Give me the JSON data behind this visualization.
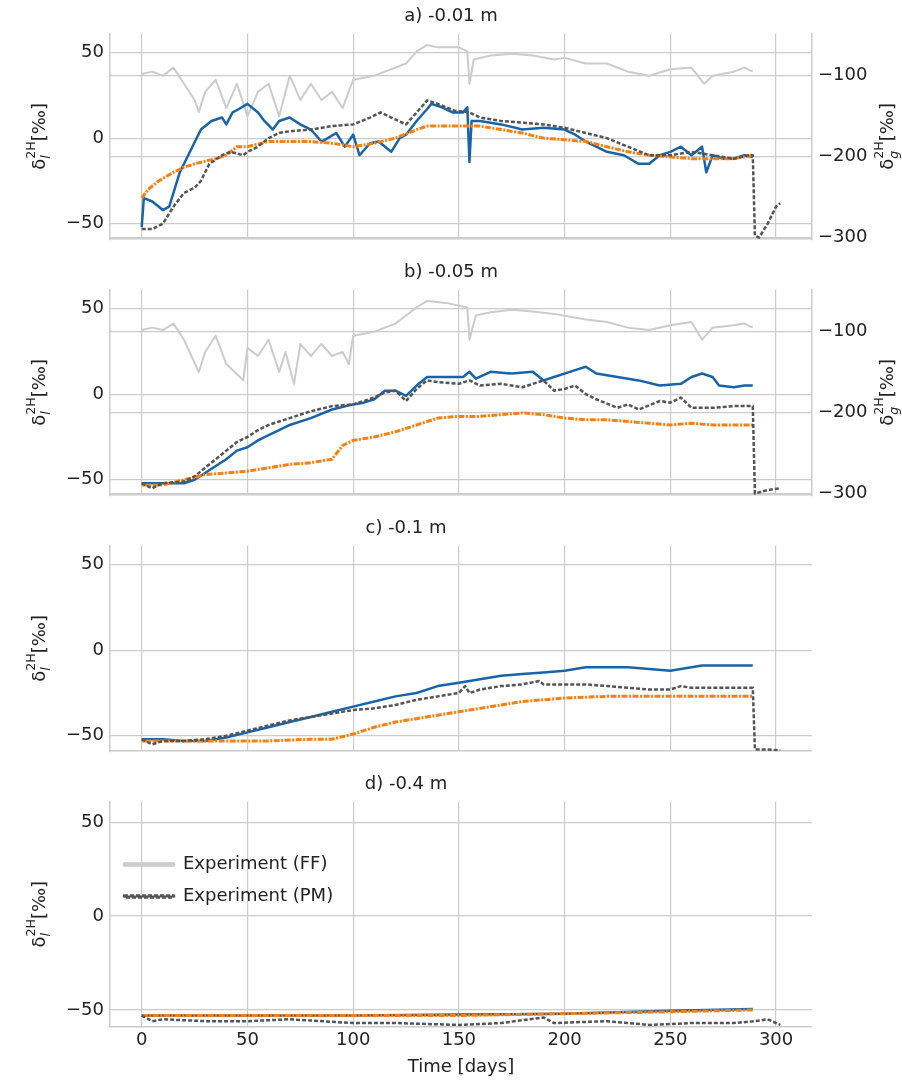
{
  "chart_data": [
    {
      "type": "line",
      "title": "a) -0.01 m",
      "ylabel": "δ$_{l}$$^{2H}$[‰]",
      "y2label": "δ$_{g}$$^{2H}$[‰]",
      "xlim": [
        -15,
        317
      ],
      "xticks": [
        0,
        50,
        100,
        150,
        200,
        250,
        300
      ],
      "ylim": [
        -59,
        61
      ],
      "yticks": [
        -50,
        0,
        50
      ],
      "y2lim": [
        -302,
        -48
      ],
      "y2ticks": [
        -300,
        -200,
        -100
      ],
      "grid": true,
      "tick_labels": "y",
      "marker": "none",
      "series": [
        {
          "color": "#1764ab",
          "line_style": "solid",
          "x": [
            0,
            1,
            5,
            10,
            13,
            18,
            22,
            28,
            33,
            38,
            40,
            43,
            46,
            50,
            55,
            58,
            62,
            65,
            70,
            75,
            80,
            85,
            88,
            92,
            96,
            100,
            103,
            108,
            112,
            118,
            122,
            125,
            130,
            135,
            137,
            142,
            147,
            152,
            154,
            155,
            156,
            160,
            170,
            180,
            190,
            200,
            205,
            210,
            215,
            220,
            228,
            235,
            240,
            245,
            250,
            255,
            260,
            265,
            267,
            270,
            275,
            280,
            285,
            289
          ],
          "values": [
            -52,
            -35,
            -37,
            -42,
            -40,
            -20,
            -10,
            5,
            10,
            12,
            8,
            15,
            17,
            20,
            15,
            10,
            5,
            10,
            12,
            8,
            5,
            -2,
            0,
            3,
            -5,
            2,
            -10,
            -3,
            -2,
            -8,
            0,
            2,
            10,
            17,
            20,
            18,
            15,
            15,
            18,
            -14,
            10,
            10,
            8,
            5,
            6,
            5,
            2,
            -2,
            -5,
            -8,
            -10,
            -15,
            -15,
            -10,
            -8,
            -5,
            -10,
            -5,
            -20,
            -10,
            -12,
            -12,
            -10,
            -11
          ]
        },
        {
          "color": "#ff7f0e",
          "line_style": "dashdot",
          "x": [
            0,
            3,
            8,
            15,
            20,
            25,
            35,
            40,
            45,
            50,
            60,
            70,
            80,
            90,
            100,
            110,
            120,
            130,
            135,
            140,
            150,
            160,
            170,
            180,
            190,
            200,
            210,
            220,
            230,
            240,
            250,
            260,
            270,
            280,
            289
          ],
          "values": [
            -35,
            -30,
            -25,
            -20,
            -17,
            -15,
            -12,
            -10,
            -5,
            -5,
            -2,
            -2,
            -2,
            -3,
            -5,
            -3,
            0,
            5,
            7,
            7,
            7,
            7,
            5,
            3,
            0,
            -1,
            -2,
            -5,
            -8,
            -10,
            -11,
            -12,
            -12,
            -12,
            -10
          ]
        },
        {
          "color": "#555555",
          "line_style": "dashed",
          "x": [
            0,
            5,
            10,
            15,
            20,
            25,
            28,
            32,
            38,
            42,
            48,
            50,
            55,
            60,
            65,
            70,
            80,
            90,
            100,
            108,
            113,
            118,
            125,
            130,
            135,
            140,
            148,
            155,
            160,
            170,
            180,
            190,
            200,
            210,
            220,
            230,
            240,
            250,
            260,
            270,
            280,
            287,
            289,
            290,
            292,
            296,
            300,
            302
          ],
          "values": [
            -53,
            -53,
            -50,
            -40,
            -32,
            -29,
            -25,
            -15,
            -10,
            -8,
            -10,
            -8,
            -5,
            0,
            3,
            4,
            5,
            7,
            8,
            12,
            15,
            12,
            8,
            15,
            22,
            20,
            16,
            15,
            12,
            10,
            9,
            8,
            6,
            3,
            0,
            -5,
            -10,
            -10,
            -8,
            -10,
            -12,
            -10,
            -10,
            -57,
            -58,
            -50,
            -40,
            -38
          ]
        },
        {
          "color": "#cccccc",
          "line_style": "solid",
          "axis": "y2",
          "x": [
            0,
            5,
            10,
            15,
            20,
            25,
            27,
            30,
            35,
            40,
            45,
            50,
            55,
            60,
            65,
            70,
            75,
            80,
            85,
            90,
            95,
            100,
            110,
            115,
            120,
            125,
            130,
            135,
            140,
            150,
            154,
            155,
            157,
            165,
            175,
            185,
            195,
            200,
            210,
            220,
            230,
            240,
            250,
            260,
            266,
            270,
            280,
            285,
            289
          ],
          "values": [
            -98,
            -95,
            -100,
            -90,
            -110,
            -130,
            -145,
            -120,
            -105,
            -140,
            -110,
            -150,
            -120,
            -110,
            -150,
            -100,
            -130,
            -110,
            -130,
            -120,
            -140,
            -105,
            -100,
            -95,
            -90,
            -85,
            -70,
            -62,
            -65,
            -65,
            -70,
            -110,
            -80,
            -75,
            -73,
            -75,
            -80,
            -78,
            -85,
            -85,
            -95,
            -100,
            -92,
            -90,
            -110,
            -100,
            -95,
            -90,
            -95
          ]
        }
      ]
    },
    {
      "type": "line",
      "title": "b) -0.05 m",
      "ylabel": "δ$_{l}$$^{2H}$[‰]",
      "y2label": "δ$_{g}$$^{2H}$[‰]",
      "xlim": [
        -15,
        317
      ],
      "xticks": [
        0,
        50,
        100,
        150,
        200,
        250,
        300
      ],
      "ylim": [
        -59,
        61
      ],
      "yticks": [
        -50,
        0,
        50
      ],
      "y2lim": [
        -302,
        -48
      ],
      "y2ticks": [
        -300,
        -200,
        -100
      ],
      "grid": true,
      "tick_labels": "y",
      "marker": "none",
      "series": [
        {
          "color": "#1764ab",
          "line_style": "solid",
          "x": [
            0,
            10,
            20,
            25,
            30,
            35,
            40,
            45,
            50,
            55,
            60,
            65,
            70,
            80,
            90,
            100,
            105,
            110,
            115,
            120,
            125,
            130,
            135,
            145,
            152,
            155,
            158,
            165,
            175,
            185,
            190,
            195,
            205,
            210,
            215,
            225,
            235,
            245,
            255,
            260,
            265,
            270,
            273,
            280,
            285,
            289
          ],
          "values": [
            -52,
            -52,
            -52,
            -50,
            -46,
            -42,
            -38,
            -33,
            -31,
            -27,
            -24,
            -21,
            -18,
            -14,
            -9,
            -6,
            -5,
            -3,
            2,
            2,
            -1,
            5,
            10,
            10,
            10,
            13,
            9,
            13,
            12,
            13,
            8,
            10,
            14,
            16,
            12,
            10,
            8,
            5,
            6,
            10,
            12,
            10,
            5,
            4,
            5,
            5
          ]
        },
        {
          "color": "#ff7f0e",
          "line_style": "dashdot",
          "x": [
            0,
            10,
            20,
            30,
            40,
            50,
            60,
            70,
            80,
            90,
            95,
            100,
            110,
            120,
            130,
            140,
            150,
            160,
            170,
            180,
            190,
            200,
            210,
            220,
            230,
            240,
            250,
            260,
            270,
            280,
            289
          ],
          "values": [
            -53,
            -53,
            -50,
            -47,
            -46,
            -45,
            -43,
            -41,
            -40,
            -38,
            -30,
            -27,
            -25,
            -22,
            -18,
            -14,
            -13,
            -13,
            -12,
            -11,
            -12,
            -14,
            -15,
            -15,
            -16,
            -17,
            -18,
            -17,
            -18,
            -18,
            -18
          ]
        },
        {
          "color": "#555555",
          "line_style": "dashed",
          "x": [
            0,
            5,
            10,
            20,
            25,
            30,
            35,
            40,
            45,
            50,
            55,
            60,
            70,
            80,
            90,
            100,
            105,
            110,
            115,
            120,
            125,
            130,
            135,
            140,
            150,
            155,
            160,
            170,
            180,
            190,
            195,
            200,
            205,
            210,
            215,
            225,
            230,
            235,
            245,
            250,
            255,
            260,
            270,
            280,
            289,
            290,
            296,
            302
          ],
          "values": [
            -52,
            -55,
            -52,
            -51,
            -48,
            -43,
            -38,
            -33,
            -28,
            -25,
            -21,
            -18,
            -14,
            -10,
            -7,
            -6,
            -4,
            -2,
            1,
            2,
            -4,
            3,
            8,
            7,
            6,
            8,
            5,
            6,
            4,
            8,
            2,
            3,
            5,
            0,
            -3,
            -8,
            -6,
            -9,
            -4,
            -5,
            -2,
            -8,
            -8,
            -7,
            -7,
            -58,
            -56,
            -55
          ]
        },
        {
          "color": "#cccccc",
          "line_style": "solid",
          "axis": "y2",
          "x": [
            0,
            5,
            10,
            15,
            20,
            27,
            30,
            35,
            40,
            48,
            50,
            55,
            60,
            65,
            68,
            72,
            75,
            80,
            85,
            90,
            95,
            98,
            100,
            110,
            120,
            125,
            130,
            135,
            145,
            154,
            155,
            158,
            165,
            175,
            185,
            195,
            210,
            220,
            230,
            240,
            250,
            260,
            265,
            270,
            280,
            285,
            289
          ],
          "values": [
            -98,
            -95,
            -98,
            -90,
            -110,
            -150,
            -125,
            -105,
            -140,
            -160,
            -120,
            -130,
            -110,
            -150,
            -125,
            -165,
            -115,
            -130,
            -115,
            -130,
            -125,
            -140,
            -105,
            -100,
            -90,
            -80,
            -70,
            -62,
            -65,
            -70,
            -110,
            -80,
            -76,
            -73,
            -75,
            -78,
            -85,
            -88,
            -95,
            -98,
            -92,
            -88,
            -110,
            -95,
            -92,
            -90,
            -95
          ]
        }
      ]
    },
    {
      "type": "line",
      "title": "c) -0.1 m",
      "ylabel": "δ$_{l}$$^{2H}$[‰]",
      "xlim": [
        -15,
        317
      ],
      "xticks": [
        0,
        50,
        100,
        150,
        200,
        250,
        300
      ],
      "ylim": [
        -59,
        61
      ],
      "yticks": [
        -50,
        0,
        50
      ],
      "grid": true,
      "tick_labels": "y",
      "marker": "none",
      "series": [
        {
          "color": "#1764ab",
          "line_style": "solid",
          "x": [
            0,
            10,
            20,
            30,
            40,
            50,
            60,
            70,
            80,
            90,
            100,
            110,
            120,
            130,
            140,
            150,
            160,
            170,
            180,
            190,
            200,
            210,
            220,
            230,
            240,
            250,
            260,
            265,
            270,
            280,
            289
          ],
          "values": [
            -52,
            -52,
            -53,
            -53,
            -51,
            -48,
            -45,
            -42,
            -39,
            -36,
            -33,
            -30,
            -27,
            -25,
            -21,
            -19,
            -17,
            -15,
            -14,
            -13,
            -12,
            -10,
            -10,
            -10,
            -11,
            -12,
            -10,
            -9,
            -9,
            -9,
            -9
          ]
        },
        {
          "color": "#ff7f0e",
          "line_style": "dashdot",
          "x": [
            0,
            20,
            40,
            60,
            80,
            90,
            100,
            110,
            120,
            130,
            140,
            150,
            160,
            170,
            180,
            190,
            200,
            220,
            240,
            260,
            280,
            289
          ],
          "values": [
            -53,
            -53,
            -53,
            -53,
            -52,
            -52,
            -49,
            -45,
            -42,
            -40,
            -38,
            -36,
            -34,
            -32,
            -30,
            -29,
            -28,
            -27,
            -27,
            -27,
            -27,
            -27
          ]
        },
        {
          "color": "#555555",
          "line_style": "dashed",
          "x": [
            0,
            5,
            10,
            20,
            30,
            40,
            50,
            60,
            70,
            80,
            90,
            100,
            110,
            120,
            130,
            140,
            150,
            153,
            155,
            160,
            170,
            180,
            188,
            190,
            200,
            210,
            220,
            230,
            240,
            250,
            255,
            260,
            270,
            285,
            289,
            290,
            296,
            302
          ],
          "values": [
            -52,
            -55,
            -53,
            -53,
            -52,
            -50,
            -47,
            -44,
            -41,
            -39,
            -37,
            -35,
            -34,
            -32,
            -29,
            -27,
            -25,
            -21,
            -25,
            -23,
            -21,
            -20,
            -18,
            -20,
            -20,
            -20,
            -21,
            -22,
            -23,
            -23,
            -21,
            -22,
            -22,
            -22,
            -22,
            -58,
            -58,
            -58.5
          ]
        }
      ]
    },
    {
      "type": "line",
      "title": "d) -0.4 m",
      "ylabel": "δ$_{l}$$^{2H}$[‰]",
      "xlabel": "Time [days]",
      "xlim": [
        -15,
        317
      ],
      "xticks": [
        0,
        50,
        100,
        150,
        200,
        250,
        300
      ],
      "ylim": [
        -59,
        61
      ],
      "yticks": [
        -50,
        0,
        50
      ],
      "grid": true,
      "legend": "top",
      "marker": "none",
      "series": [
        {
          "color": "#1764ab",
          "line_style": "solid",
          "x": [
            0,
            50,
            100,
            150,
            200,
            250,
            289
          ],
          "values": [
            -53,
            -53,
            -53,
            -52.5,
            -52,
            -50.5,
            -49.5
          ]
        },
        {
          "color": "#ff7f0e",
          "line_style": "dashdot",
          "x": [
            0,
            100,
            150,
            200,
            250,
            289
          ],
          "values": [
            -53,
            -53,
            -53,
            -52,
            -51,
            -50
          ]
        },
        {
          "name": "Experiment (PM)",
          "color": "#555555",
          "line_style": "dashed",
          "x": [
            0,
            5,
            10,
            30,
            50,
            70,
            100,
            120,
            150,
            170,
            190,
            195,
            220,
            240,
            260,
            280,
            290,
            296,
            300,
            302
          ],
          "values": [
            -53,
            -56,
            -55,
            -56,
            -56,
            -55,
            -57,
            -57,
            -58,
            -57,
            -54,
            -57,
            -56,
            -58,
            -57,
            -57,
            -56,
            -55,
            -57,
            -58
          ]
        },
        {
          "name": "Experiment (FF)",
          "color": "#cccccc",
          "line_style": "solid"
        }
      ]
    }
  ]
}
